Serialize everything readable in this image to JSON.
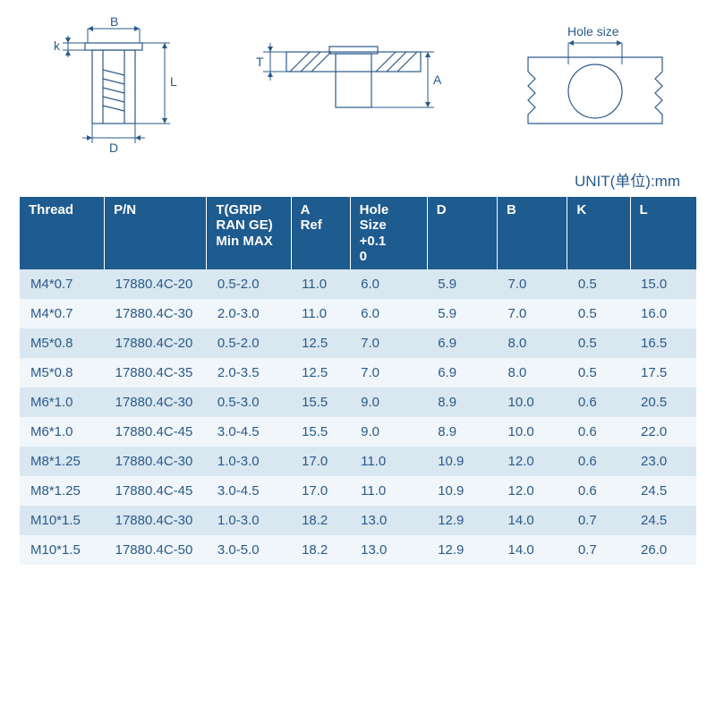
{
  "unit_label": "UNIT(单位):mm",
  "diagrams": {
    "left": {
      "labels": {
        "B": "B",
        "k": "k",
        "L": "L",
        "D": "D"
      }
    },
    "middle": {
      "labels": {
        "T": "T",
        "A": "A"
      }
    },
    "right": {
      "labels": {
        "hole": "Hole size"
      }
    }
  },
  "table": {
    "header_bg": "#1e5b8f",
    "header_fg": "#ffffff",
    "row_odd_bg": "#d9e7f1",
    "row_even_bg": "#f1f6fa",
    "text_color": "#2a5a8a",
    "columns": [
      "Thread",
      "P/N",
      "T(GRIP\nRAN GE)\nMin MAX",
      "A\nRef",
      "Hole Size\n+0.1\n0",
      "D",
      "B",
      "K",
      "L"
    ],
    "rows": [
      [
        "M4*0.7",
        "17880.4C-20",
        "0.5-2.0",
        "11.0",
        "6.0",
        "5.9",
        "7.0",
        "0.5",
        "15.0"
      ],
      [
        "M4*0.7",
        "17880.4C-30",
        "2.0-3.0",
        "11.0",
        "6.0",
        "5.9",
        "7.0",
        "0.5",
        "16.0"
      ],
      [
        "M5*0.8",
        "17880.4C-20",
        "0.5-2.0",
        "12.5",
        "7.0",
        "6.9",
        "8.0",
        "0.5",
        "16.5"
      ],
      [
        "M5*0.8",
        "17880.4C-35",
        "2.0-3.5",
        "12.5",
        "7.0",
        "6.9",
        "8.0",
        "0.5",
        "17.5"
      ],
      [
        "M6*1.0",
        "17880.4C-30",
        "0.5-3.0",
        "15.5",
        "9.0",
        "8.9",
        "10.0",
        "0.6",
        "20.5"
      ],
      [
        "M6*1.0",
        "17880.4C-45",
        "3.0-4.5",
        "15.5",
        "9.0",
        "8.9",
        "10.0",
        "0.6",
        "22.0"
      ],
      [
        "M8*1.25",
        "17880.4C-30",
        "1.0-3.0",
        "17.0",
        "11.0",
        "10.9",
        "12.0",
        "0.6",
        "23.0"
      ],
      [
        "M8*1.25",
        "17880.4C-45",
        "3.0-4.5",
        "17.0",
        "11.0",
        "10.9",
        "12.0",
        "0.6",
        "24.5"
      ],
      [
        "M10*1.5",
        "17880.4C-30",
        "1.0-3.0",
        "18.2",
        "13.0",
        "12.9",
        "14.0",
        "0.7",
        "24.5"
      ],
      [
        "M10*1.5",
        "17880.4C-50",
        "3.0-5.0",
        "18.2",
        "13.0",
        "12.9",
        "14.0",
        "0.7",
        "26.0"
      ]
    ]
  }
}
